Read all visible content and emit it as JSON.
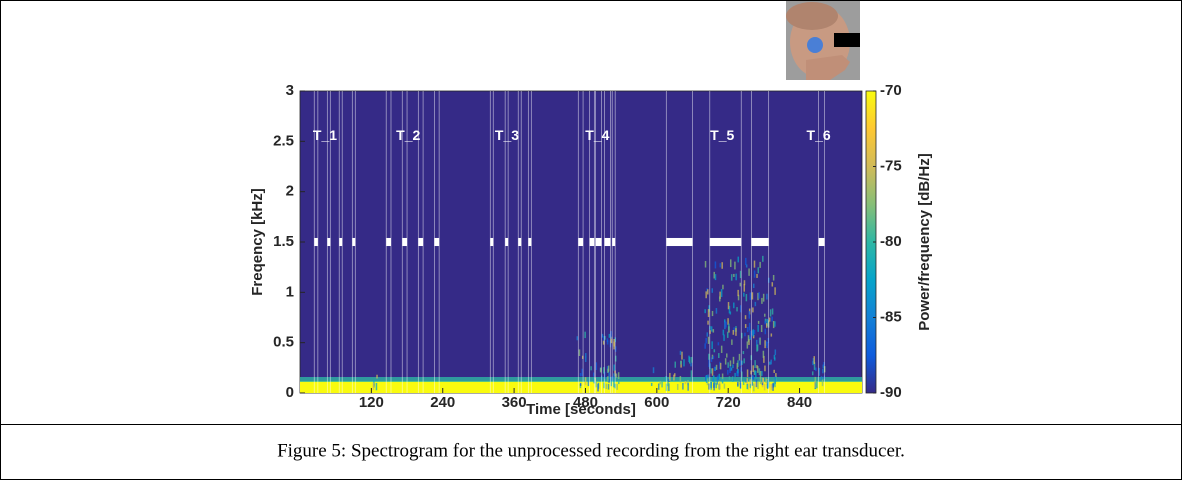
{
  "chart_data": {
    "type": "spectrogram",
    "xlabel": "Time [seconds]",
    "ylabel": "Freqency [kHz]",
    "colorbar_label": "Power/frequency [dB/Hz]",
    "caption": "Figure 5: Spectrogram for the unprocessed recording from the right ear transducer.",
    "xlim": [
      0,
      945
    ],
    "ylim": [
      0,
      3
    ],
    "xticks": [
      120,
      240,
      360,
      480,
      600,
      720,
      840
    ],
    "yticks": [
      0,
      0.5,
      1,
      1.5,
      2,
      2.5,
      3
    ],
    "clim": [
      -90,
      -70
    ],
    "cticks": [
      -70,
      -75,
      -80,
      -85,
      -90
    ],
    "colormap": [
      "#352a87",
      "#0f5cdd",
      "#1481d6",
      "#06a4ca",
      "#2eb7a4",
      "#87bf77",
      "#d1bb59",
      "#fec832",
      "#f9fb0e"
    ],
    "annotations": [
      {
        "text": "T_1",
        "x": 42,
        "y": 2.55
      },
      {
        "text": "T_2",
        "x": 182,
        "y": 2.55
      },
      {
        "text": "T_3",
        "x": 348,
        "y": 2.55
      },
      {
        "text": "T_4",
        "x": 500,
        "y": 2.55
      },
      {
        "text": "T_5",
        "x": 710,
        "y": 2.55
      },
      {
        "text": "T_6",
        "x": 872,
        "y": 2.55
      }
    ],
    "marker_band": [
      1.46,
      1.54
    ],
    "markers": [
      [
        24,
        30
      ],
      [
        46,
        51
      ],
      [
        66,
        71
      ],
      [
        88,
        93
      ],
      [
        145,
        153
      ],
      [
        172,
        180
      ],
      [
        199,
        207
      ],
      [
        226,
        234
      ],
      [
        320,
        325
      ],
      [
        345,
        350
      ],
      [
        367,
        372
      ],
      [
        384,
        389
      ],
      [
        468,
        476
      ],
      [
        487,
        495
      ],
      [
        497,
        507
      ],
      [
        512,
        522
      ],
      [
        525,
        530
      ],
      [
        616,
        660
      ],
      [
        689,
        742
      ],
      [
        759,
        788
      ],
      [
        872,
        882
      ]
    ]
  }
}
